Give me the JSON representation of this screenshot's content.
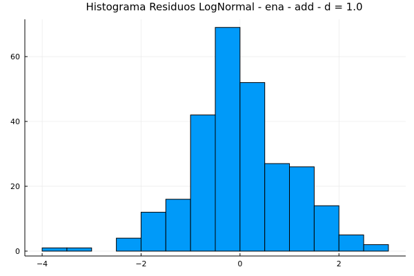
{
  "colors": {
    "bar_fill": "#009AF9",
    "bar_stroke": "#000000",
    "grid": "#e6e6e6",
    "axis": "#000000"
  },
  "chart_data": {
    "type": "bar",
    "title": "Histograma Residuos LogNormal - ena - add - d = 1.0",
    "xlabel": "",
    "ylabel": "",
    "bin_edges": [
      -4,
      -3.5,
      -3,
      -2.5,
      -2,
      -1.5,
      -1,
      -0.5,
      0,
      0.5,
      1,
      1.5,
      2,
      2.5,
      3
    ],
    "values": [
      1,
      1,
      0,
      4,
      12,
      16,
      42,
      69,
      52,
      27,
      26,
      14,
      5,
      2
    ],
    "xlim": [
      -4.35,
      3.35
    ],
    "ylim": [
      -1.5,
      71.5
    ],
    "xticks": [
      -4,
      -2,
      0,
      2
    ],
    "xtick_labels": [
      "−4",
      "−2",
      "0",
      "2"
    ],
    "yticks": [
      0,
      20,
      40,
      60
    ],
    "ytick_labels": [
      "0",
      "20",
      "40",
      "60"
    ],
    "grid": true,
    "legend": "none"
  }
}
